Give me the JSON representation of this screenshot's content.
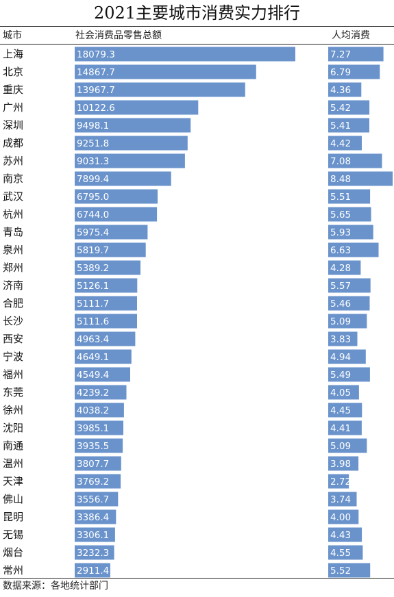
{
  "title": "2021主要城市消费实力排行",
  "headers": {
    "city": "城市",
    "retail": "社会消费品零售总额",
    "per_capita": "人均消费"
  },
  "footer": "数据来源：各地统计部门",
  "colors": {
    "bar": "#6A93CC",
    "text": "#111111",
    "bar_text": "#ffffff"
  },
  "chart_data": {
    "type": "bar",
    "title": "2021主要城市消费实力排行",
    "categories": [
      "上海",
      "北京",
      "重庆",
      "广州",
      "深圳",
      "成都",
      "苏州",
      "南京",
      "武汉",
      "杭州",
      "青岛",
      "泉州",
      "郑州",
      "济南",
      "合肥",
      "长沙",
      "西安",
      "宁波",
      "福州",
      "东莞",
      "徐州",
      "沈阳",
      "南通",
      "温州",
      "天津",
      "佛山",
      "昆明",
      "无锡",
      "烟台",
      "常州"
    ],
    "series": [
      {
        "name": "社会消费品零售总额",
        "values": [
          18079.3,
          14867.7,
          13967.7,
          10122.6,
          9498.1,
          9251.8,
          9031.3,
          7899.4,
          6795.0,
          6744.0,
          5975.4,
          5819.7,
          5389.2,
          5126.1,
          5111.7,
          5111.6,
          4963.4,
          4649.1,
          4549.4,
          4239.2,
          4038.2,
          3985.1,
          3935.5,
          3807.7,
          3769.2,
          3556.7,
          3386.4,
          3306.1,
          3232.3,
          2911.4
        ]
      },
      {
        "name": "人均消费",
        "values": [
          7.27,
          6.79,
          4.36,
          5.42,
          5.41,
          4.42,
          7.08,
          8.48,
          5.51,
          5.65,
          5.93,
          6.63,
          4.28,
          5.57,
          5.46,
          5.09,
          3.83,
          4.94,
          5.49,
          4.05,
          4.45,
          4.41,
          5.09,
          3.98,
          2.72,
          3.74,
          4.0,
          4.43,
          4.55,
          5.52
        ]
      }
    ],
    "grid": false,
    "legend": "none"
  }
}
